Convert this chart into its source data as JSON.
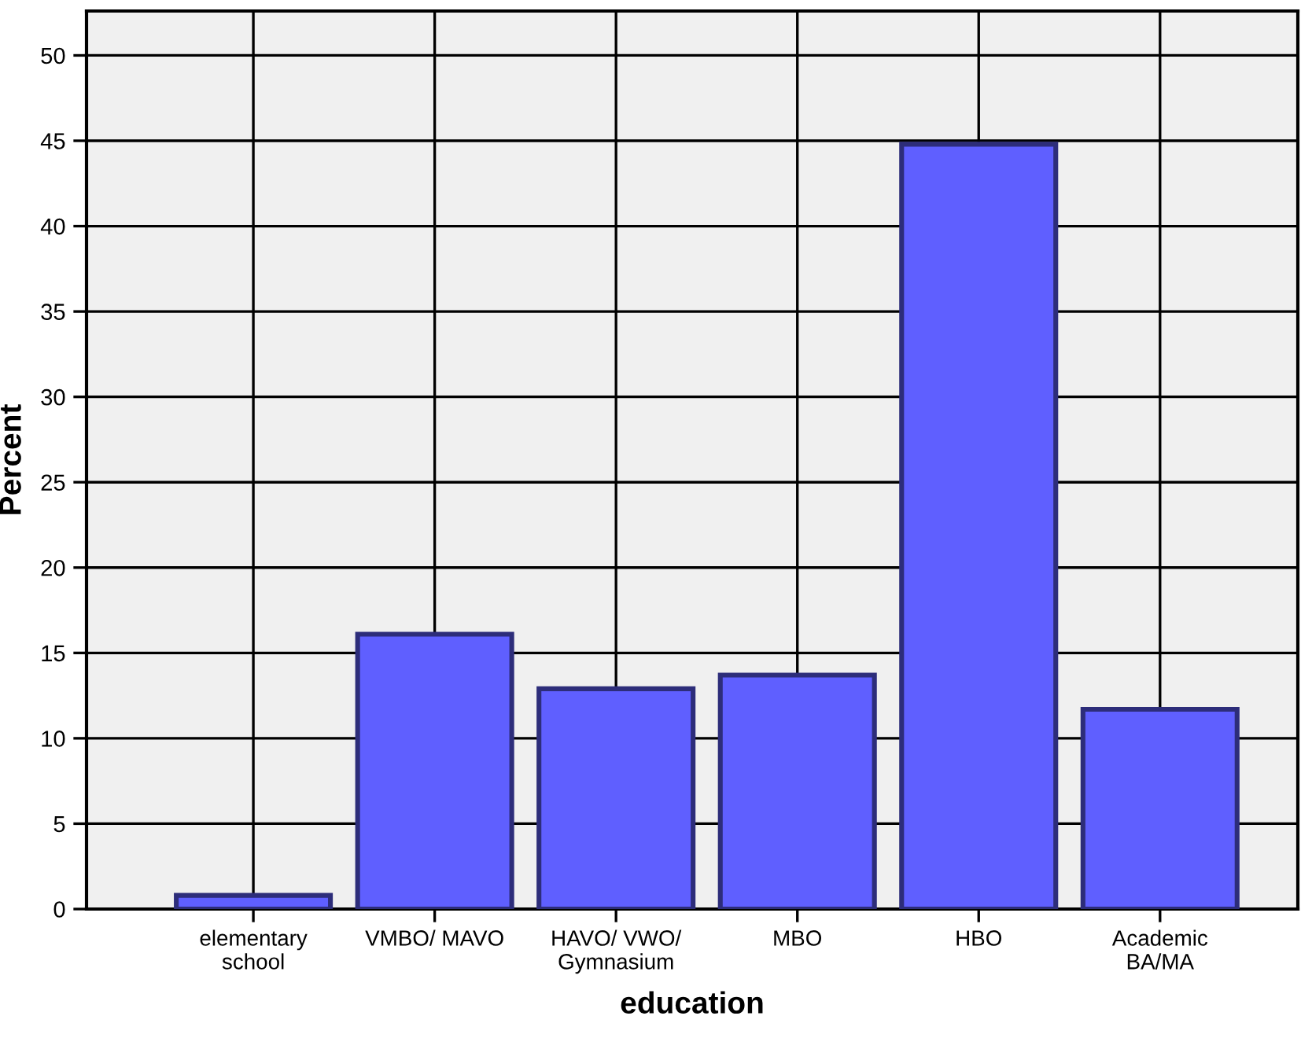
{
  "chart_data": {
    "type": "bar",
    "xlabel": "education",
    "ylabel": "Percent",
    "categories": [
      "elementary\nschool",
      "VMBO/ MAVO",
      "HAVO/ VWO/\nGymnasium",
      "MBO",
      "HBO",
      "Academic\nBA/MA"
    ],
    "values": [
      0.8,
      16.1,
      12.9,
      13.7,
      44.8,
      11.7
    ],
    "color": "#5f5fff",
    "ylim": [
      0,
      52.6
    ],
    "yticks": [
      0,
      5,
      10,
      15,
      20,
      25,
      30,
      35,
      40,
      45,
      50
    ],
    "grid": true
  }
}
